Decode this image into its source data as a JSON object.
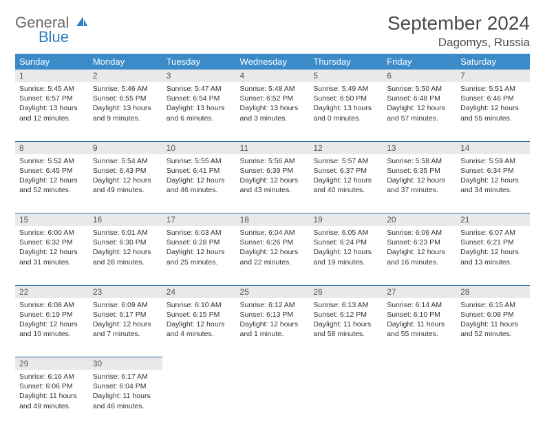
{
  "brand": {
    "line1": "General",
    "line2": "Blue"
  },
  "title": "September 2024",
  "location": "Dagomys, Russia",
  "day_headers": [
    "Sunday",
    "Monday",
    "Tuesday",
    "Wednesday",
    "Thursday",
    "Friday",
    "Saturday"
  ],
  "colors": {
    "header_bg": "#3b8bc8",
    "header_text": "#ffffff",
    "daynum_bg": "#e9e9e9",
    "row_divider": "#2d6ca3",
    "logo_gray": "#6a6a6a",
    "logo_blue": "#2d7bc0",
    "body_text": "#333333",
    "title_text": "#4a4a4a",
    "page_bg": "#ffffff"
  },
  "fonts": {
    "title_size_pt": 21,
    "location_size_pt": 13,
    "header_size_pt": 10,
    "daynum_size_pt": 9,
    "body_size_pt": 8
  },
  "weeks": [
    {
      "nums": [
        "1",
        "2",
        "3",
        "4",
        "5",
        "6",
        "7"
      ],
      "cells": [
        {
          "sunrise": "Sunrise: 5:45 AM",
          "sunset": "Sunset: 6:57 PM",
          "day1": "Daylight: 13 hours",
          "day2": "and 12 minutes."
        },
        {
          "sunrise": "Sunrise: 5:46 AM",
          "sunset": "Sunset: 6:55 PM",
          "day1": "Daylight: 13 hours",
          "day2": "and 9 minutes."
        },
        {
          "sunrise": "Sunrise: 5:47 AM",
          "sunset": "Sunset: 6:54 PM",
          "day1": "Daylight: 13 hours",
          "day2": "and 6 minutes."
        },
        {
          "sunrise": "Sunrise: 5:48 AM",
          "sunset": "Sunset: 6:52 PM",
          "day1": "Daylight: 13 hours",
          "day2": "and 3 minutes."
        },
        {
          "sunrise": "Sunrise: 5:49 AM",
          "sunset": "Sunset: 6:50 PM",
          "day1": "Daylight: 13 hours",
          "day2": "and 0 minutes."
        },
        {
          "sunrise": "Sunrise: 5:50 AM",
          "sunset": "Sunset: 6:48 PM",
          "day1": "Daylight: 12 hours",
          "day2": "and 57 minutes."
        },
        {
          "sunrise": "Sunrise: 5:51 AM",
          "sunset": "Sunset: 6:46 PM",
          "day1": "Daylight: 12 hours",
          "day2": "and 55 minutes."
        }
      ]
    },
    {
      "nums": [
        "8",
        "9",
        "10",
        "11",
        "12",
        "13",
        "14"
      ],
      "cells": [
        {
          "sunrise": "Sunrise: 5:52 AM",
          "sunset": "Sunset: 6:45 PM",
          "day1": "Daylight: 12 hours",
          "day2": "and 52 minutes."
        },
        {
          "sunrise": "Sunrise: 5:54 AM",
          "sunset": "Sunset: 6:43 PM",
          "day1": "Daylight: 12 hours",
          "day2": "and 49 minutes."
        },
        {
          "sunrise": "Sunrise: 5:55 AM",
          "sunset": "Sunset: 6:41 PM",
          "day1": "Daylight: 12 hours",
          "day2": "and 46 minutes."
        },
        {
          "sunrise": "Sunrise: 5:56 AM",
          "sunset": "Sunset: 6:39 PM",
          "day1": "Daylight: 12 hours",
          "day2": "and 43 minutes."
        },
        {
          "sunrise": "Sunrise: 5:57 AM",
          "sunset": "Sunset: 6:37 PM",
          "day1": "Daylight: 12 hours",
          "day2": "and 40 minutes."
        },
        {
          "sunrise": "Sunrise: 5:58 AM",
          "sunset": "Sunset: 6:35 PM",
          "day1": "Daylight: 12 hours",
          "day2": "and 37 minutes."
        },
        {
          "sunrise": "Sunrise: 5:59 AM",
          "sunset": "Sunset: 6:34 PM",
          "day1": "Daylight: 12 hours",
          "day2": "and 34 minutes."
        }
      ]
    },
    {
      "nums": [
        "15",
        "16",
        "17",
        "18",
        "19",
        "20",
        "21"
      ],
      "cells": [
        {
          "sunrise": "Sunrise: 6:00 AM",
          "sunset": "Sunset: 6:32 PM",
          "day1": "Daylight: 12 hours",
          "day2": "and 31 minutes."
        },
        {
          "sunrise": "Sunrise: 6:01 AM",
          "sunset": "Sunset: 6:30 PM",
          "day1": "Daylight: 12 hours",
          "day2": "and 28 minutes."
        },
        {
          "sunrise": "Sunrise: 6:03 AM",
          "sunset": "Sunset: 6:28 PM",
          "day1": "Daylight: 12 hours",
          "day2": "and 25 minutes."
        },
        {
          "sunrise": "Sunrise: 6:04 AM",
          "sunset": "Sunset: 6:26 PM",
          "day1": "Daylight: 12 hours",
          "day2": "and 22 minutes."
        },
        {
          "sunrise": "Sunrise: 6:05 AM",
          "sunset": "Sunset: 6:24 PM",
          "day1": "Daylight: 12 hours",
          "day2": "and 19 minutes."
        },
        {
          "sunrise": "Sunrise: 6:06 AM",
          "sunset": "Sunset: 6:23 PM",
          "day1": "Daylight: 12 hours",
          "day2": "and 16 minutes."
        },
        {
          "sunrise": "Sunrise: 6:07 AM",
          "sunset": "Sunset: 6:21 PM",
          "day1": "Daylight: 12 hours",
          "day2": "and 13 minutes."
        }
      ]
    },
    {
      "nums": [
        "22",
        "23",
        "24",
        "25",
        "26",
        "27",
        "28"
      ],
      "cells": [
        {
          "sunrise": "Sunrise: 6:08 AM",
          "sunset": "Sunset: 6:19 PM",
          "day1": "Daylight: 12 hours",
          "day2": "and 10 minutes."
        },
        {
          "sunrise": "Sunrise: 6:09 AM",
          "sunset": "Sunset: 6:17 PM",
          "day1": "Daylight: 12 hours",
          "day2": "and 7 minutes."
        },
        {
          "sunrise": "Sunrise: 6:10 AM",
          "sunset": "Sunset: 6:15 PM",
          "day1": "Daylight: 12 hours",
          "day2": "and 4 minutes."
        },
        {
          "sunrise": "Sunrise: 6:12 AM",
          "sunset": "Sunset: 6:13 PM",
          "day1": "Daylight: 12 hours",
          "day2": "and 1 minute."
        },
        {
          "sunrise": "Sunrise: 6:13 AM",
          "sunset": "Sunset: 6:12 PM",
          "day1": "Daylight: 11 hours",
          "day2": "and 58 minutes."
        },
        {
          "sunrise": "Sunrise: 6:14 AM",
          "sunset": "Sunset: 6:10 PM",
          "day1": "Daylight: 11 hours",
          "day2": "and 55 minutes."
        },
        {
          "sunrise": "Sunrise: 6:15 AM",
          "sunset": "Sunset: 6:08 PM",
          "day1": "Daylight: 11 hours",
          "day2": "and 52 minutes."
        }
      ]
    },
    {
      "nums": [
        "29",
        "30",
        "",
        "",
        "",
        "",
        ""
      ],
      "cells": [
        {
          "sunrise": "Sunrise: 6:16 AM",
          "sunset": "Sunset: 6:06 PM",
          "day1": "Daylight: 11 hours",
          "day2": "and 49 minutes."
        },
        {
          "sunrise": "Sunrise: 6:17 AM",
          "sunset": "Sunset: 6:04 PM",
          "day1": "Daylight: 11 hours",
          "day2": "and 46 minutes."
        },
        null,
        null,
        null,
        null,
        null
      ]
    }
  ]
}
